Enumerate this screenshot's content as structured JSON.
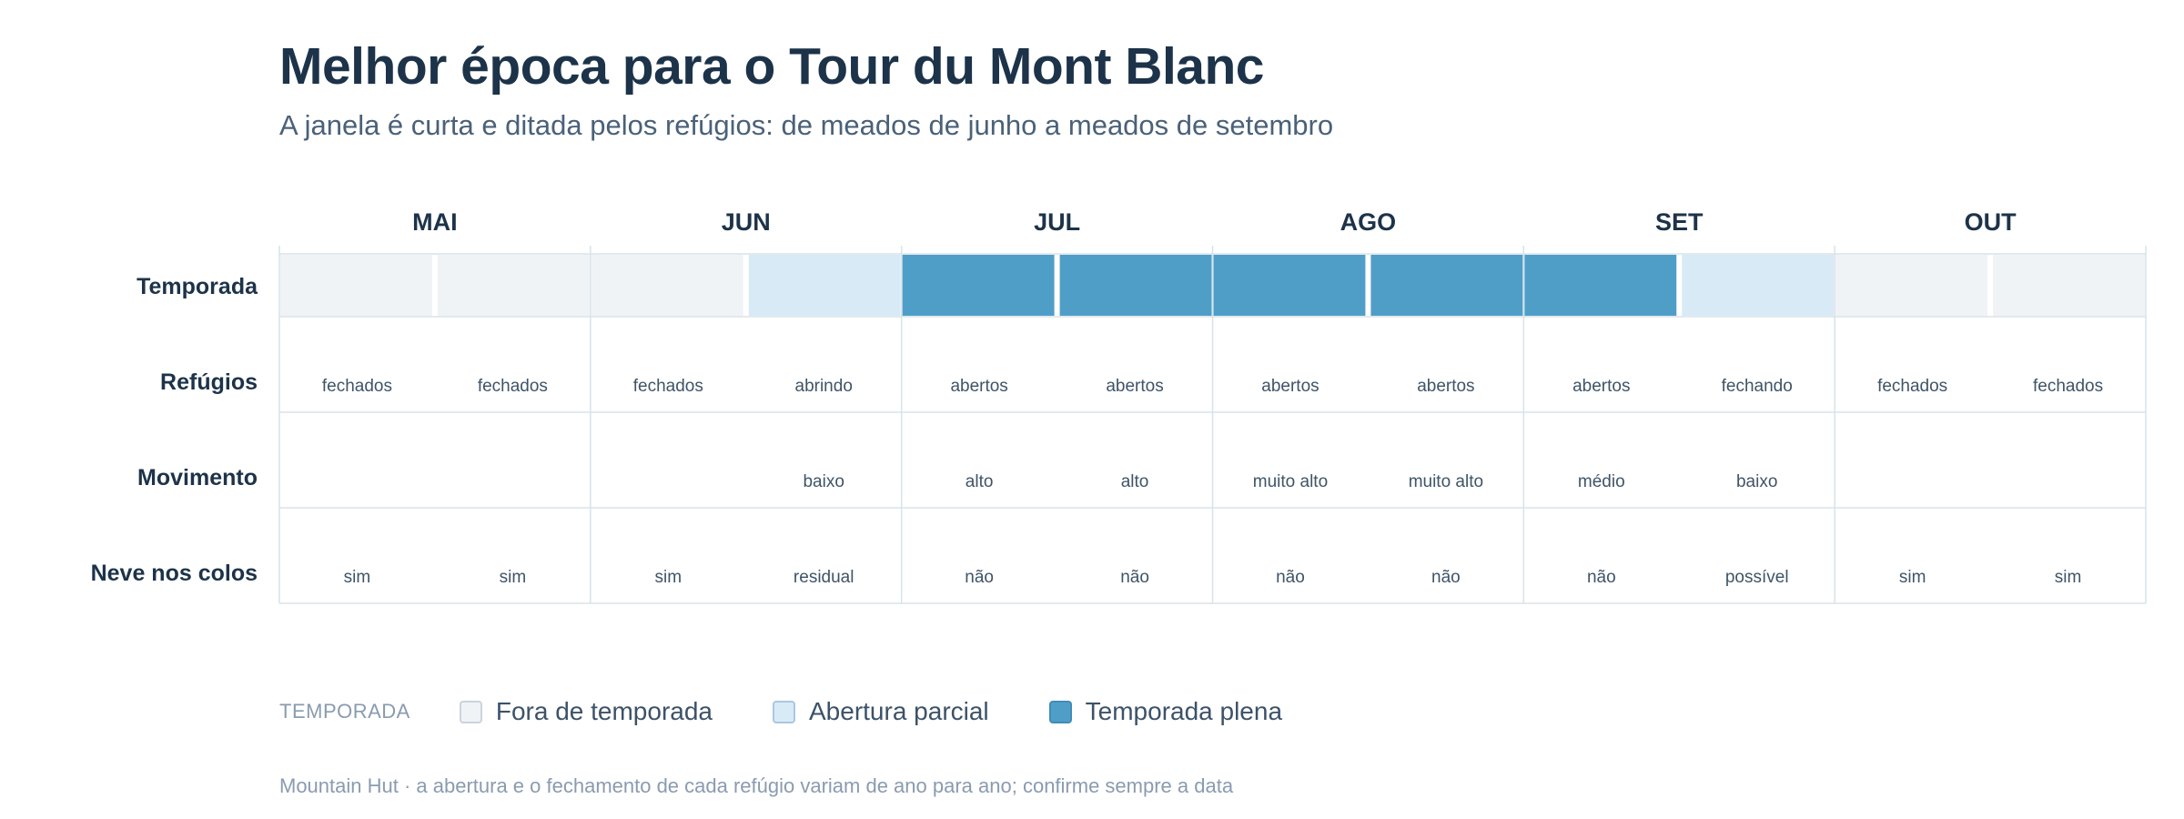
{
  "title": "Melhor época para o Tour du Mont Blanc",
  "subtitle": "A janela é curta e ditada pelos refúgios: de meados de junho a meados de setembro",
  "footnote": "Mountain Hut · a abertura e o fechamento de cada refúgio variam de ano para ano; confirme sempre a data",
  "colors": {
    "off": "#f0f3f6",
    "partial": "#d8eaf5",
    "full": "#4f9ec8",
    "grid": "#d7e3ea",
    "text_dark": "#1d3349"
  },
  "legend": {
    "title": "TEMPORADA",
    "items": [
      {
        "key": "off",
        "label": "Fora de temporada"
      },
      {
        "key": "partial",
        "label": "Abertura parcial"
      },
      {
        "key": "full",
        "label": "Temporada plena"
      }
    ]
  },
  "chart_data": {
    "type": "heatmap",
    "months": [
      "MAI",
      "JUN",
      "JUL",
      "AGO",
      "SET",
      "OUT"
    ],
    "periods_per_month": 2,
    "rows": [
      {
        "key": "season",
        "label": "Temporada",
        "values": [
          "off",
          "off",
          "off",
          "partial",
          "full",
          "full",
          "full",
          "full",
          "full",
          "partial",
          "off",
          "off"
        ]
      },
      {
        "key": "huts",
        "label": "Refúgios",
        "values": [
          "fechados",
          "fechados",
          "fechados",
          "abrindo",
          "abertos",
          "abertos",
          "abertos",
          "abertos",
          "abertos",
          "fechando",
          "fechados",
          "fechados"
        ]
      },
      {
        "key": "crowds",
        "label": "Movimento",
        "values": [
          "",
          "",
          "",
          "baixo",
          "alto",
          "alto",
          "muito alto",
          "muito alto",
          "médio",
          "baixo",
          "",
          ""
        ]
      },
      {
        "key": "snow",
        "label": "Neve nos colos",
        "values": [
          "sim",
          "sim",
          "sim",
          "residual",
          "não",
          "não",
          "não",
          "não",
          "não",
          "possível",
          "sim",
          "sim"
        ]
      }
    ]
  }
}
